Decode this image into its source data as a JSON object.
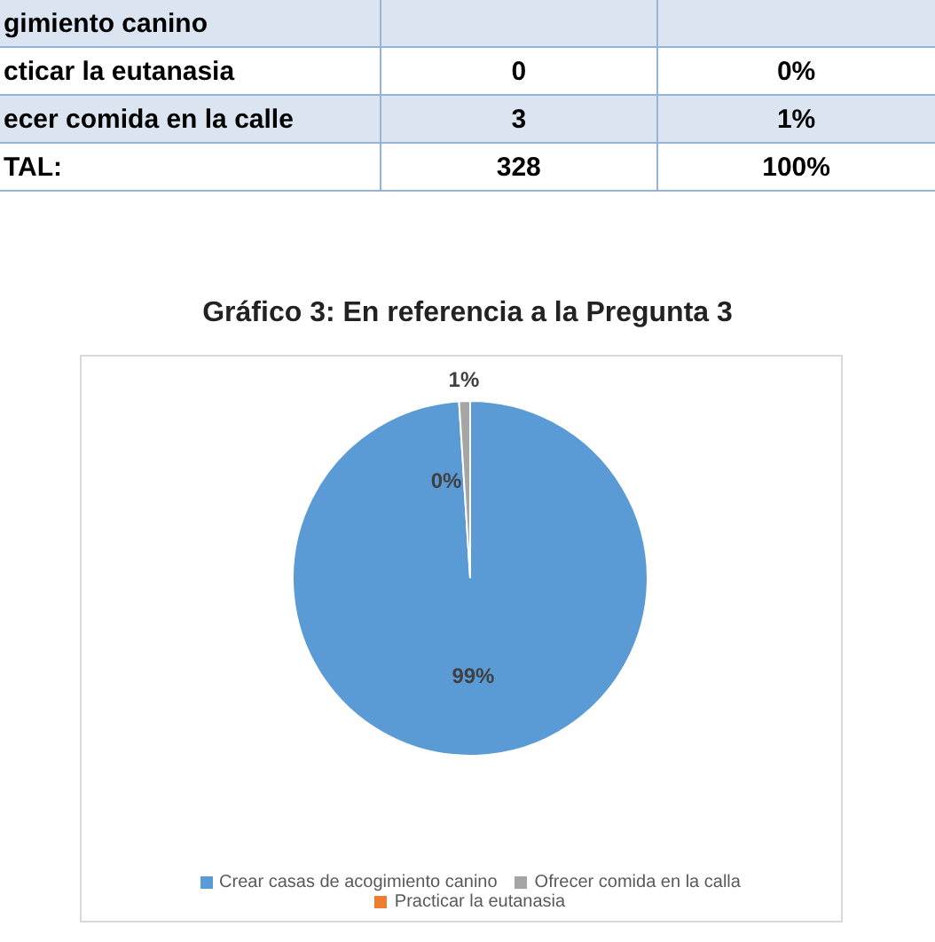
{
  "chart_data": {
    "type": "pie",
    "title": "Gráfico 3: En referencia a la Pregunta 3",
    "categories": [
      "Crear casas de acogimiento canino",
      "Practicar la eutanasia",
      "Ofrecer comida en la calla"
    ],
    "values": [
      99,
      0,
      1
    ],
    "colors": [
      "#5b9bd5",
      "#ed7d31",
      "#a5a5a5"
    ],
    "value_labels": [
      "99%",
      "0%",
      "1%"
    ],
    "legend": "bottom",
    "annotations": [
      "gimiento canino",
      "cticar la eutanasia",
      "0",
      "0%",
      "ecer comida en la calle",
      "3",
      "1%",
      "TAL:",
      "328",
      "100%"
    ]
  }
}
